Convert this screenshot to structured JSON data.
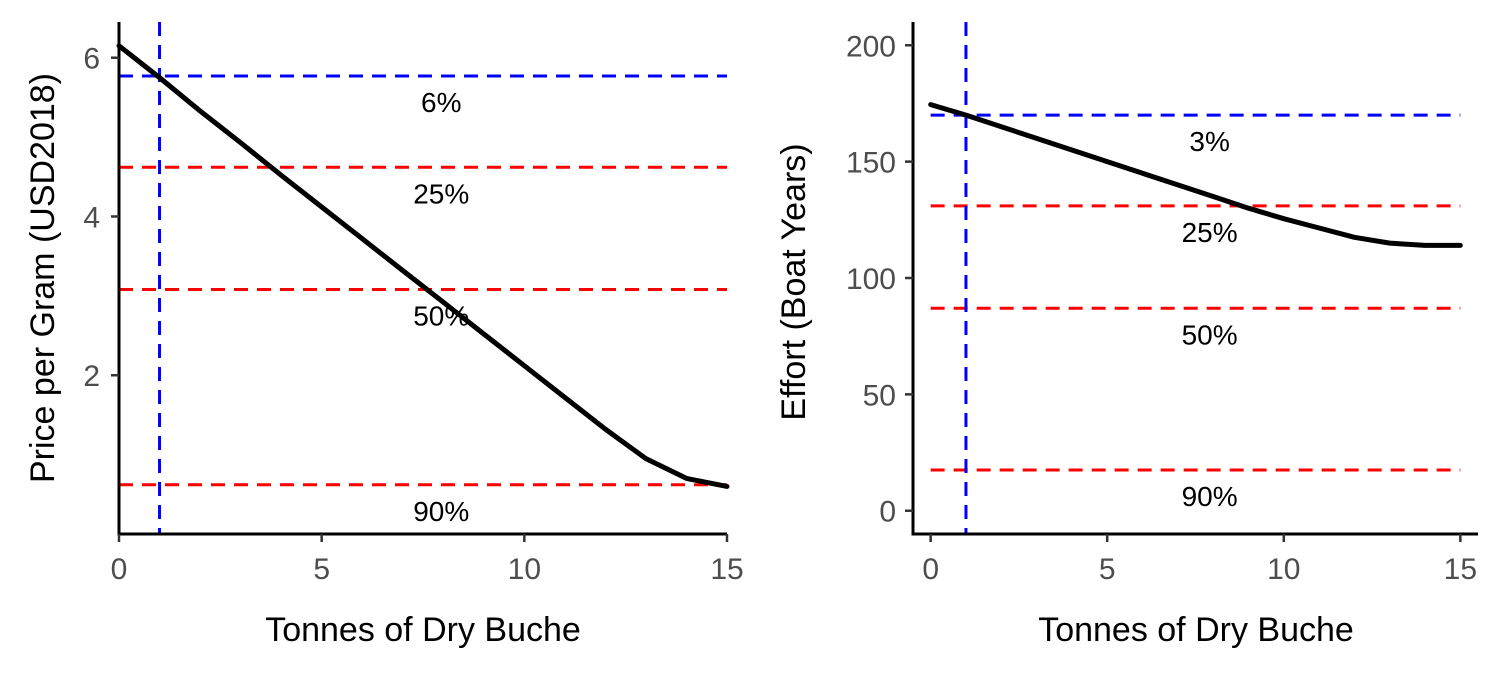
{
  "colors": {
    "series": "#000000",
    "blue": "#0000ff",
    "red": "#ff0000",
    "tick_text": "#4d4d4d"
  },
  "chart_data": [
    {
      "type": "line",
      "xlabel": "Tonnes of Dry Buche",
      "ylabel": "Price per Gram (USD2018)",
      "xlim": [
        0,
        15
      ],
      "ylim": [
        0.0,
        6.45
      ],
      "xticks": [
        0,
        5,
        10,
        15
      ],
      "yticks": [
        2,
        4,
        6
      ],
      "grid": false,
      "series": [
        {
          "x": [
            0,
            1,
            2,
            3,
            4,
            5,
            6,
            7,
            8,
            9,
            10,
            11,
            12,
            13,
            14,
            15
          ],
          "y": [
            6.15,
            5.75,
            5.33,
            4.93,
            4.52,
            4.12,
            3.72,
            3.32,
            2.92,
            2.52,
            2.12,
            1.72,
            1.32,
            0.95,
            0.7,
            0.6
          ]
        }
      ],
      "vline": {
        "x": 1,
        "color": "#0000ff"
      },
      "hlines": [
        {
          "y": 5.77,
          "label": "6%",
          "color": "#0000ff"
        },
        {
          "y": 4.62,
          "label": "25%",
          "color": "#ff0000"
        },
        {
          "y": 3.08,
          "label": "50%",
          "color": "#ff0000"
        },
        {
          "y": 0.62,
          "label": "90%",
          "color": "#ff0000"
        }
      ]
    },
    {
      "type": "line",
      "xlabel": "Tonnes of Dry Buche",
      "ylabel": "Effort (Boat Years)",
      "xlim": [
        -0.5,
        15.5
      ],
      "ylim": [
        -10,
        210
      ],
      "xticks": [
        0,
        5,
        10,
        15
      ],
      "yticks": [
        0,
        50,
        100,
        150,
        200
      ],
      "grid": false,
      "series": [
        {
          "x": [
            0,
            1,
            2,
            3,
            4,
            5,
            6,
            7,
            8,
            9,
            10,
            11,
            12,
            13,
            14,
            15
          ],
          "y": [
            174.5,
            170,
            165,
            160,
            155,
            150,
            145,
            140,
            135,
            130,
            125.5,
            121.5,
            117.5,
            115,
            114,
            114
          ]
        }
      ],
      "vline": {
        "x": 1,
        "color": "#0000ff"
      },
      "hlines": [
        {
          "y": 170,
          "label": "3%",
          "color": "#0000ff"
        },
        {
          "y": 131,
          "label": "25%",
          "color": "#ff0000"
        },
        {
          "y": 87,
          "label": "50%",
          "color": "#ff0000"
        },
        {
          "y": 17.5,
          "label": "90%",
          "color": "#ff0000"
        }
      ]
    }
  ]
}
